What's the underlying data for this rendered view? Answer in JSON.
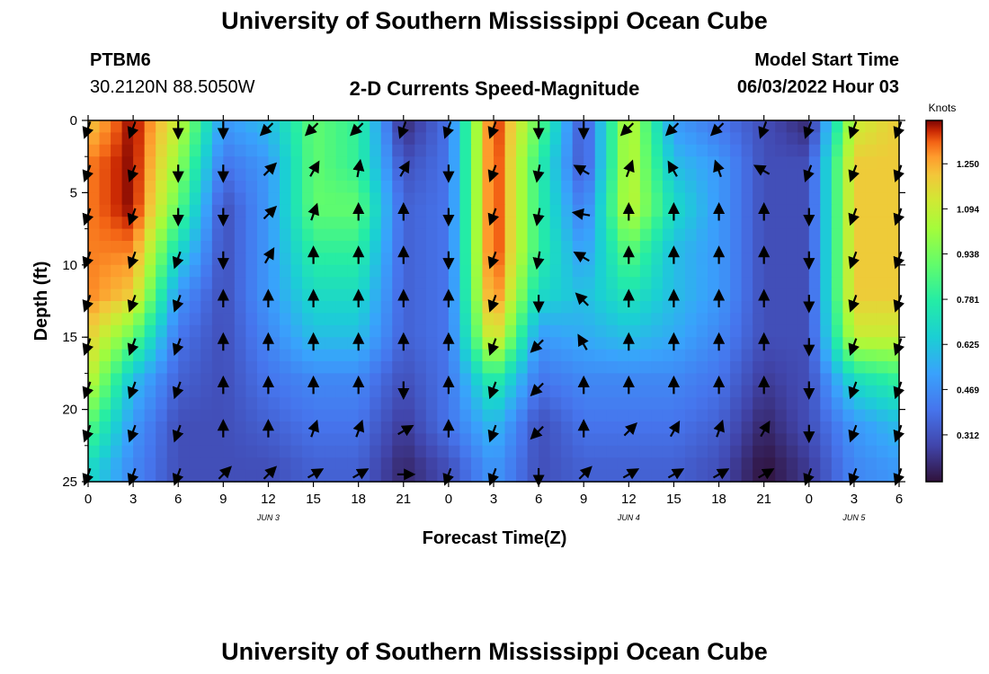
{
  "header": {
    "title": "University of Southern Mississippi Ocean Cube",
    "station_id": "PTBM6",
    "station_coords": "30.2120N  88.5050W",
    "plot_title": "2-D Currents Speed-Magnitude",
    "model_start_label": "Model Start Time",
    "model_start_value": "06/03/2022 Hour 03"
  },
  "footer": {
    "title": "University of Southern Mississippi Ocean Cube"
  },
  "chart_data": {
    "type": "heatmap",
    "xlabel": "Forecast Time(Z)",
    "ylabel": "Depth (ft)",
    "x_ticks": [
      "0",
      "3",
      "6",
      "9",
      "12",
      "15",
      "18",
      "21",
      "0",
      "3",
      "6",
      "9",
      "12",
      "15",
      "18",
      "21",
      "0",
      "3",
      "6"
    ],
    "date_labels": [
      {
        "label": "JUN 3",
        "tick_index": 4
      },
      {
        "label": "JUN 4",
        "tick_index": 12
      },
      {
        "label": "JUN 5",
        "tick_index": 17
      }
    ],
    "y_ticks": [
      0,
      5,
      10,
      15,
      20,
      25
    ],
    "ylim": [
      0,
      25
    ],
    "xlim_hours": [
      0,
      54
    ],
    "colorbar": {
      "label": "Knots",
      "ticks": [
        "1.250",
        "1.094",
        "0.938",
        "0.781",
        "0.625",
        "0.469",
        "0.312"
      ],
      "tick_values": [
        1.25,
        1.094,
        0.938,
        0.781,
        0.625,
        0.469,
        0.312
      ],
      "range": [
        0.15,
        1.4
      ]
    },
    "depth_levels_ft": [
      0,
      3,
      6,
      9,
      12,
      15,
      18,
      21,
      24
    ],
    "time_hours": [
      0,
      3,
      6,
      9,
      12,
      15,
      18,
      21,
      24,
      27,
      30,
      33,
      36,
      39,
      42,
      45,
      48,
      51,
      54
    ],
    "speed_knots": [
      [
        1.2,
        1.4,
        1.1,
        0.5,
        0.6,
        0.9,
        0.8,
        0.2,
        0.4,
        1.4,
        0.9,
        0.3,
        1.1,
        0.5,
        0.4,
        0.3,
        0.2,
        1.1,
        1.2
      ],
      [
        1.3,
        1.4,
        1.0,
        0.4,
        0.5,
        0.9,
        0.8,
        0.3,
        0.4,
        1.4,
        0.8,
        0.3,
        1.1,
        0.6,
        0.5,
        0.3,
        0.3,
        1.2,
        1.2
      ],
      [
        1.3,
        1.4,
        0.9,
        0.3,
        0.5,
        0.9,
        0.9,
        0.35,
        0.4,
        1.4,
        0.8,
        0.4,
        1.1,
        0.7,
        0.5,
        0.3,
        0.3,
        1.2,
        1.2
      ],
      [
        1.3,
        1.3,
        0.7,
        0.3,
        0.5,
        0.8,
        0.8,
        0.35,
        0.4,
        1.4,
        0.8,
        0.5,
        0.9,
        0.6,
        0.5,
        0.3,
        0.3,
        1.2,
        1.2
      ],
      [
        1.3,
        1.2,
        0.5,
        0.3,
        0.5,
        0.7,
        0.7,
        0.35,
        0.4,
        1.35,
        0.7,
        0.6,
        0.75,
        0.6,
        0.5,
        0.3,
        0.3,
        1.2,
        1.2
      ],
      [
        1.2,
        0.9,
        0.4,
        0.3,
        0.45,
        0.6,
        0.6,
        0.35,
        0.4,
        1.2,
        0.5,
        0.55,
        0.6,
        0.55,
        0.45,
        0.3,
        0.3,
        1.1,
        1.1
      ],
      [
        1.1,
        0.6,
        0.35,
        0.3,
        0.4,
        0.45,
        0.45,
        0.3,
        0.4,
        0.8,
        0.4,
        0.45,
        0.45,
        0.45,
        0.4,
        0.25,
        0.3,
        0.7,
        0.8
      ],
      [
        0.9,
        0.5,
        0.3,
        0.3,
        0.35,
        0.4,
        0.4,
        0.25,
        0.4,
        0.6,
        0.3,
        0.4,
        0.4,
        0.4,
        0.35,
        0.2,
        0.3,
        0.5,
        0.6
      ],
      [
        0.7,
        0.45,
        0.3,
        0.3,
        0.3,
        0.35,
        0.35,
        0.2,
        0.3,
        0.5,
        0.3,
        0.35,
        0.35,
        0.35,
        0.3,
        0.15,
        0.25,
        0.45,
        0.5
      ]
    ],
    "direction_deg": [
      [
        200,
        200,
        180,
        180,
        225,
        225,
        225,
        200,
        200,
        200,
        180,
        180,
        225,
        225,
        225,
        200,
        200,
        200,
        200
      ],
      [
        200,
        200,
        180,
        180,
        45,
        30,
        10,
        30,
        180,
        200,
        190,
        300,
        20,
        330,
        340,
        300,
        200,
        200,
        200
      ],
      [
        200,
        200,
        180,
        180,
        45,
        20,
        0,
        0,
        180,
        200,
        190,
        280,
        0,
        0,
        0,
        0,
        180,
        200,
        200
      ],
      [
        200,
        200,
        200,
        180,
        30,
        0,
        0,
        0,
        180,
        200,
        190,
        300,
        0,
        0,
        0,
        0,
        180,
        200,
        200
      ],
      [
        200,
        200,
        200,
        0,
        0,
        0,
        0,
        0,
        0,
        200,
        180,
        315,
        0,
        0,
        0,
        0,
        180,
        200,
        200
      ],
      [
        200,
        200,
        200,
        0,
        0,
        0,
        0,
        0,
        0,
        200,
        225,
        330,
        0,
        0,
        0,
        0,
        180,
        200,
        200
      ],
      [
        200,
        200,
        200,
        0,
        0,
        0,
        0,
        180,
        0,
        200,
        225,
        0,
        0,
        0,
        0,
        0,
        180,
        200,
        200
      ],
      [
        200,
        200,
        200,
        0,
        0,
        20,
        20,
        60,
        0,
        200,
        225,
        0,
        45,
        30,
        20,
        30,
        180,
        200,
        200
      ],
      [
        200,
        200,
        200,
        45,
        45,
        60,
        60,
        90,
        200,
        200,
        180,
        45,
        60,
        60,
        60,
        60,
        200,
        200,
        200
      ]
    ]
  }
}
